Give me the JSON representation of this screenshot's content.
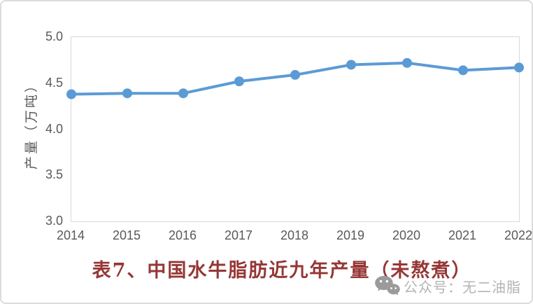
{
  "chart_data": {
    "type": "line",
    "x": [
      "2014",
      "2015",
      "2016",
      "2017",
      "2018",
      "2019",
      "2020",
      "2021",
      "2022"
    ],
    "series": [
      {
        "name": "产量",
        "values": [
          4.38,
          4.39,
          4.39,
          4.52,
          4.59,
          4.7,
          4.72,
          4.64,
          4.67
        ]
      }
    ],
    "title": "",
    "xlabel": "",
    "ylabel": "产量（万吨）",
    "ylim": [
      3.0,
      5.0
    ],
    "ytick_step": 0.5,
    "yticks": [
      "5.0",
      "4.5",
      "4.0",
      "3.5",
      "3.0"
    ],
    "grid": false,
    "legend": "none",
    "line_color": "#5b9bd5",
    "marker": "circle",
    "marker_color": "#5b9bd5",
    "axis_label_color": "#595959",
    "plot_border_color": "#d9d9d9"
  },
  "title": {
    "text": "表7、中国水牛脂肪近九年产量（未熬煮）",
    "color": "#953735"
  },
  "watermark": {
    "icon": "wechat-icon",
    "text": "公众号：无二油脂",
    "text_color": "#b3b4b5",
    "icon_color": "#9b9b9b"
  }
}
